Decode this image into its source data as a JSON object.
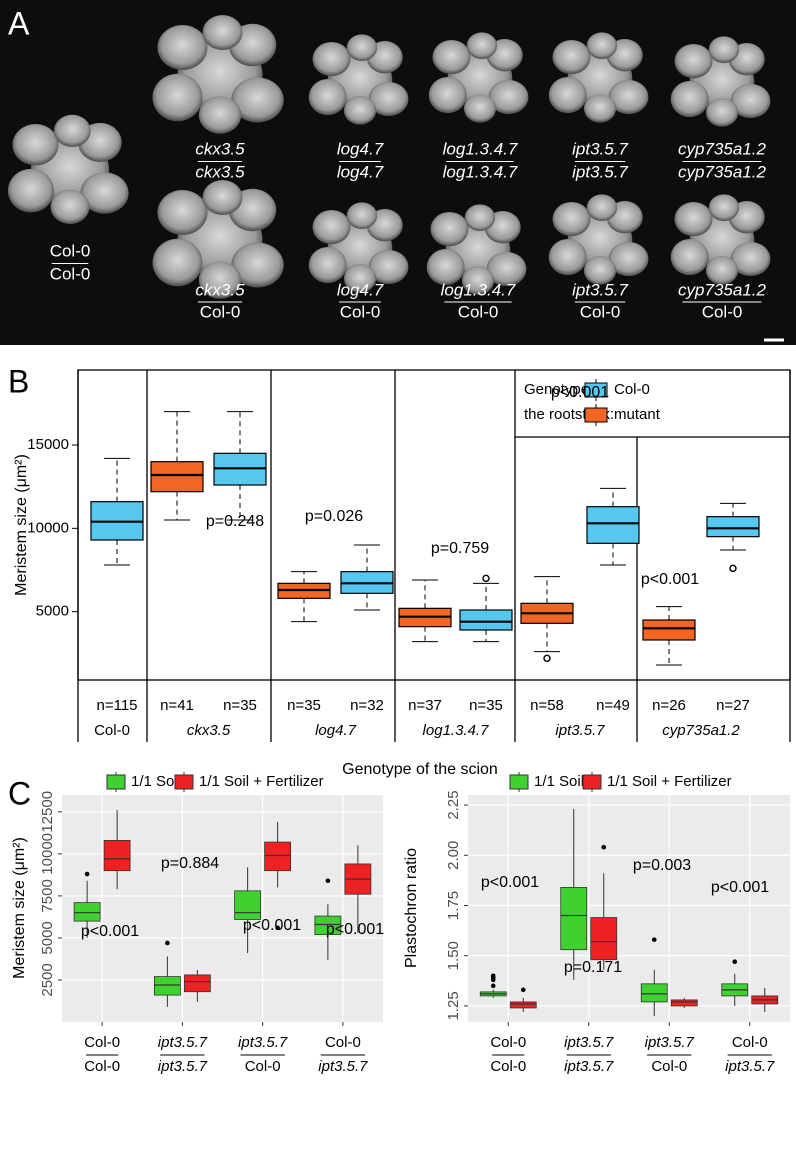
{
  "panel_a": {
    "label": "A",
    "images": [
      {
        "scion": "Col-0",
        "rootstock": "Col-0",
        "scion_italic": false,
        "rootstock_italic": false
      },
      {
        "scion": "ckx3.5",
        "rootstock": "ckx3.5",
        "scion_italic": true,
        "rootstock_italic": true
      },
      {
        "scion": "log4.7",
        "rootstock": "log4.7",
        "scion_italic": true,
        "rootstock_italic": true
      },
      {
        "scion": "log1.3.4.7",
        "rootstock": "log1.3.4.7",
        "scion_italic": true,
        "rootstock_italic": true
      },
      {
        "scion": "ipt3.5.7",
        "rootstock": "ipt3.5.7",
        "scion_italic": true,
        "rootstock_italic": true
      },
      {
        "scion": "cyp735a1.2",
        "rootstock": "cyp735a1.2",
        "scion_italic": true,
        "rootstock_italic": true
      },
      {
        "scion": "ckx3.5",
        "rootstock": "Col-0",
        "scion_italic": true,
        "rootstock_italic": false
      },
      {
        "scion": "log4.7",
        "rootstock": "Col-0",
        "scion_italic": true,
        "rootstock_italic": false
      },
      {
        "scion": "log1.3.4.7",
        "rootstock": "Col-0",
        "scion_italic": true,
        "rootstock_italic": false
      },
      {
        "scion": "ipt3.5.7",
        "rootstock": "Col-0",
        "scion_italic": true,
        "rootstock_italic": false
      },
      {
        "scion": "cyp735a1.2",
        "rootstock": "Col-0",
        "scion_italic": true,
        "rootstock_italic": false
      }
    ]
  },
  "chart_data": [
    {
      "type": "box",
      "theme": "base",
      "panel_label": "B",
      "y_label": "Meristem size (μm²)",
      "x_label": "Genotype of the scion",
      "ylim": [
        900,
        19500
      ],
      "yticks": [
        5000,
        10000,
        15000
      ],
      "legend_title": [
        "Genotype of",
        "the rootstock:"
      ],
      "legend": [
        {
          "name": "Col-0",
          "color": "#56c8f0"
        },
        {
          "name": "mutant",
          "color": "#f26522"
        }
      ],
      "groups": [
        {
          "name": "Col-0",
          "italic": false,
          "boxes": [
            {
              "n": "n=115",
              "color": "#56c8f0",
              "min": 7800,
              "q1": 9300,
              "median": 10400,
              "q3": 11600,
              "max": 14200
            }
          ]
        },
        {
          "name": "ckx3.5",
          "italic": true,
          "p_value": "p=0.248",
          "boxes": [
            {
              "n": "n=41",
              "color": "#f26522",
              "min": 10500,
              "q1": 12200,
              "median": 13200,
              "q3": 14000,
              "max": 17000
            },
            {
              "n": "n=35",
              "color": "#56c8f0",
              "min": 10500,
              "q1": 12600,
              "median": 13600,
              "q3": 14500,
              "max": 17000
            }
          ]
        },
        {
          "name": "log4.7",
          "italic": true,
          "p_value": "p=0.026",
          "boxes": [
            {
              "n": "n=35",
              "color": "#f26522",
              "min": 4400,
              "q1": 5800,
              "median": 6300,
              "q3": 6700,
              "max": 7400
            },
            {
              "n": "n=32",
              "color": "#56c8f0",
              "min": 5100,
              "q1": 6100,
              "median": 6700,
              "q3": 7400,
              "max": 9000
            }
          ]
        },
        {
          "name": "log1.3.4.7",
          "italic": true,
          "p_value": "p=0.759",
          "boxes": [
            {
              "n": "n=37",
              "color": "#f26522",
              "min": 3200,
              "q1": 4100,
              "median": 4700,
              "q3": 5200,
              "max": 6900
            },
            {
              "n": "n=35",
              "color": "#56c8f0",
              "min": 3200,
              "q1": 3900,
              "median": 4400,
              "q3": 5100,
              "max": 6700,
              "outliers": [
                7000
              ]
            }
          ]
        },
        {
          "name": "ipt3.5.7",
          "italic": true,
          "p_value": "p<0.001",
          "boxes": [
            {
              "n": "n=58",
              "color": "#f26522",
              "min": 2600,
              "q1": 4300,
              "median": 4900,
              "q3": 5500,
              "max": 7100,
              "outliers": [
                2200
              ]
            },
            {
              "n": "n=49",
              "color": "#56c8f0",
              "min": 7800,
              "q1": 9100,
              "median": 10300,
              "q3": 11300,
              "max": 12400
            }
          ]
        },
        {
          "name": "cyp735a1.2",
          "italic": true,
          "p_value": "p<0.001",
          "boxes": [
            {
              "n": "n=26",
              "color": "#f26522",
              "min": 1800,
              "q1": 3300,
              "median": 4000,
              "q3": 4500,
              "max": 5300
            },
            {
              "n": "n=27",
              "color": "#56c8f0",
              "min": 8700,
              "q1": 9500,
              "median": 10000,
              "q3": 10700,
              "max": 11500,
              "outliers": [
                7600
              ]
            }
          ]
        }
      ]
    },
    {
      "type": "box",
      "theme": "ggplot",
      "panel_label": "C",
      "y_label": "Meristem size (μm²)",
      "ylim": [
        0,
        13500
      ],
      "yticks": [
        2500,
        5000,
        7500,
        10000,
        12500
      ],
      "grid": true,
      "legend": [
        {
          "name": "1/1 Soil",
          "color": "#3fd12f"
        },
        {
          "name": "1/1 Soil + Fertilizer",
          "color": "#ee2222"
        }
      ],
      "groups": [
        {
          "scion": "Col-0",
          "rootstock": "Col-0",
          "scion_italic": false,
          "rootstock_italic": false,
          "p_value": "p<0.001",
          "boxes": [
            {
              "color": "#3fd12f",
              "min": 5000,
              "q1": 6000,
              "median": 6500,
              "q3": 7100,
              "max": 8400,
              "outliers": [
                8800
              ]
            },
            {
              "color": "#ee2222",
              "min": 7900,
              "q1": 9000,
              "median": 9700,
              "q3": 10800,
              "max": 12600
            }
          ]
        },
        {
          "scion": "ipt3.5.7",
          "rootstock": "ipt3.5.7",
          "scion_italic": true,
          "rootstock_italic": true,
          "p_value": "p=0.884",
          "boxes": [
            {
              "color": "#3fd12f",
              "min": 900,
              "q1": 1600,
              "median": 2200,
              "q3": 2700,
              "max": 3900,
              "outliers": [
                4700
              ]
            },
            {
              "color": "#ee2222",
              "min": 1200,
              "q1": 1800,
              "median": 2400,
              "q3": 2800,
              "max": 3100
            }
          ]
        },
        {
          "scion": "ipt3.5.7",
          "rootstock": "Col-0",
          "scion_italic": true,
          "rootstock_italic": false,
          "p_value": "p<0.001",
          "boxes": [
            {
              "color": "#3fd12f",
              "min": 4100,
              "q1": 6100,
              "median": 6500,
              "q3": 7800,
              "max": 9200
            },
            {
              "color": "#ee2222",
              "min": 8000,
              "q1": 9000,
              "median": 9900,
              "q3": 10700,
              "max": 11900,
              "outliers": [
                5600
              ]
            }
          ]
        },
        {
          "scion": "Col-0",
          "rootstock": "ipt3.5.7",
          "scion_italic": false,
          "rootstock_italic": true,
          "p_value": "p<0.001",
          "boxes": [
            {
              "color": "#3fd12f",
              "min": 3700,
              "q1": 5200,
              "median": 5800,
              "q3": 6300,
              "max": 7000,
              "outliers": [
                8400
              ]
            },
            {
              "color": "#ee2222",
              "min": 5300,
              "q1": 7600,
              "median": 8500,
              "q3": 9400,
              "max": 10500
            }
          ]
        }
      ]
    },
    {
      "type": "box",
      "theme": "ggplot",
      "y_label": "Plastochron ratio",
      "ylim": [
        1.17,
        2.3
      ],
      "yticks": [
        1.25,
        {
          "value": 1.5,
          "label": "1.50"
        },
        1.75,
        {
          "value": 2,
          "label": "2.00"
        },
        2.25
      ],
      "grid": true,
      "legend": [
        {
          "name": "1/1 Soil",
          "color": "#3fd12f"
        },
        {
          "name": "1/1 Soil + Fertilizer",
          "color": "#ee2222"
        }
      ],
      "groups": [
        {
          "scion": "Col-0",
          "rootstock": "Col-0",
          "scion_italic": false,
          "rootstock_italic": false,
          "p_value": "p<0.001",
          "boxes": [
            {
              "color": "#3fd12f",
              "min": 1.29,
              "q1": 1.3,
              "median": 1.31,
              "q3": 1.32,
              "max": 1.33,
              "outliers": [
                1.35,
                1.38,
                1.39,
                1.4
              ]
            },
            {
              "color": "#ee2222",
              "min": 1.22,
              "q1": 1.24,
              "median": 1.26,
              "q3": 1.27,
              "max": 1.29,
              "outliers": [
                1.33
              ]
            }
          ]
        },
        {
          "scion": "ipt3.5.7",
          "rootstock": "ipt3.5.7",
          "scion_italic": true,
          "rootstock_italic": true,
          "p_value": "p=0.171",
          "boxes": [
            {
              "color": "#3fd12f",
              "min": 1.38,
              "q1": 1.53,
              "median": 1.7,
              "q3": 1.84,
              "max": 2.23
            },
            {
              "color": "#ee2222",
              "min": 1.43,
              "q1": 1.48,
              "median": 1.57,
              "q3": 1.69,
              "max": 1.91,
              "outliers": [
                2.04
              ]
            }
          ]
        },
        {
          "scion": "ipt3.5.7",
          "rootstock": "Col-0",
          "scion_italic": true,
          "rootstock_italic": false,
          "p_value": "p=0.003",
          "boxes": [
            {
              "color": "#3fd12f",
              "min": 1.2,
              "q1": 1.27,
              "median": 1.31,
              "q3": 1.36,
              "max": 1.43,
              "outliers": [
                1.58
              ]
            },
            {
              "color": "#ee2222",
              "min": 1.24,
              "q1": 1.25,
              "median": 1.27,
              "q3": 1.28,
              "max": 1.29
            }
          ]
        },
        {
          "scion": "Col-0",
          "rootstock": "ipt3.5.7",
          "scion_italic": false,
          "rootstock_italic": true,
          "p_value": "p<0.001",
          "boxes": [
            {
              "color": "#3fd12f",
              "min": 1.25,
              "q1": 1.3,
              "median": 1.33,
              "q3": 1.36,
              "max": 1.41,
              "outliers": [
                1.47
              ]
            },
            {
              "color": "#ee2222",
              "min": 1.22,
              "q1": 1.26,
              "median": 1.28,
              "q3": 1.3,
              "max": 1.34
            }
          ]
        }
      ]
    }
  ]
}
